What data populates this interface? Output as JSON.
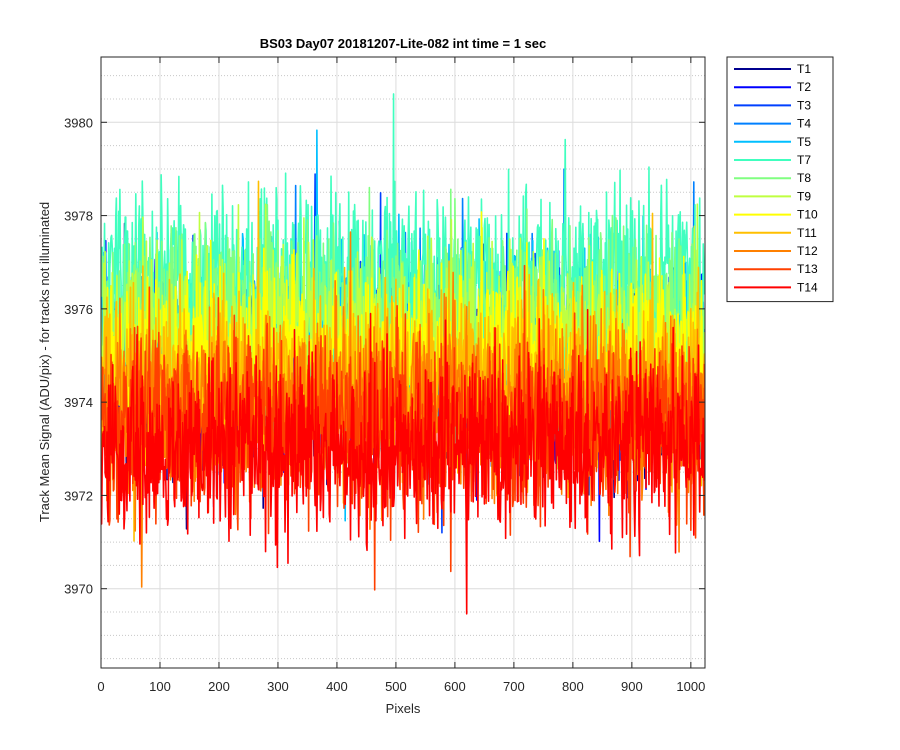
{
  "chart_data": {
    "type": "line",
    "title": "BS03 Day07 20181207-Lite-082 int time = 1 sec",
    "xlabel": "Pixels",
    "ylabel": "Track Mean Signal (ADU/pix) - for tracks not illuminated",
    "xlim": [
      0,
      1024
    ],
    "ylim": [
      3968.3,
      3981.4
    ],
    "xticks": [
      0,
      100,
      200,
      300,
      400,
      500,
      600,
      700,
      800,
      900,
      1000
    ],
    "yticks": [
      3970,
      3972,
      3974,
      3976,
      3978,
      3980
    ],
    "grid": true,
    "minor_grid": true,
    "legend_position": "outside-right",
    "n_points": 1024,
    "series": [
      {
        "name": "T1",
        "color": "#00008f",
        "mean": 3974.4,
        "spread": 1.6
      },
      {
        "name": "T2",
        "color": "#0000ff",
        "mean": 3974.5,
        "spread": 1.6
      },
      {
        "name": "T3",
        "color": "#0040ff",
        "mean": 3974.7,
        "spread": 1.6
      },
      {
        "name": "T4",
        "color": "#0080ff",
        "mean": 3975.0,
        "spread": 1.6
      },
      {
        "name": "T5",
        "color": "#00bfff",
        "mean": 3975.4,
        "spread": 1.6
      },
      {
        "name": "T7",
        "color": "#40ffbf",
        "mean": 3976.6,
        "spread": 1.7
      },
      {
        "name": "T8",
        "color": "#80ff80",
        "mean": 3975.9,
        "spread": 1.6
      },
      {
        "name": "T9",
        "color": "#bfff40",
        "mean": 3975.4,
        "spread": 1.6
      },
      {
        "name": "T10",
        "color": "#ffff00",
        "mean": 3974.9,
        "spread": 1.6
      },
      {
        "name": "T11",
        "color": "#ffbf00",
        "mean": 3974.4,
        "spread": 1.6
      },
      {
        "name": "T12",
        "color": "#ff8000",
        "mean": 3973.9,
        "spread": 1.6
      },
      {
        "name": "T13",
        "color": "#ff4000",
        "mean": 3973.5,
        "spread": 1.6
      },
      {
        "name": "T14",
        "color": "#ff0000",
        "mean": 3973.0,
        "spread": 1.6
      }
    ]
  }
}
